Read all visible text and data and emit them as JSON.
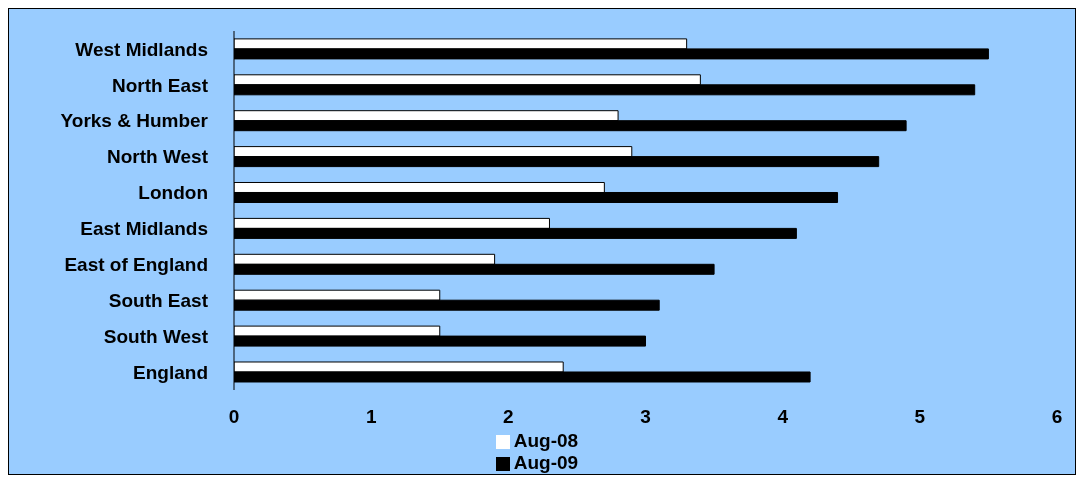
{
  "chart_data": {
    "type": "bar",
    "orientation": "horizontal",
    "categories": [
      "West Midlands",
      "North East",
      "Yorks & Humber",
      "North West",
      "London",
      "East Midlands",
      "East of England",
      "South East",
      "South West",
      "England"
    ],
    "series": [
      {
        "name": "Aug-08",
        "color": "#ffffff",
        "values": [
          3.3,
          3.4,
          2.8,
          2.9,
          2.7,
          2.3,
          1.9,
          1.5,
          1.5,
          2.4
        ]
      },
      {
        "name": "Aug-09",
        "color": "#000000",
        "values": [
          5.5,
          5.4,
          4.9,
          4.7,
          4.4,
          4.1,
          3.5,
          3.1,
          3.0,
          4.2
        ]
      }
    ],
    "xlim": [
      0,
      6
    ],
    "xticks": [
      0,
      1,
      2,
      3,
      4,
      5,
      6
    ],
    "legend": "bottom"
  }
}
